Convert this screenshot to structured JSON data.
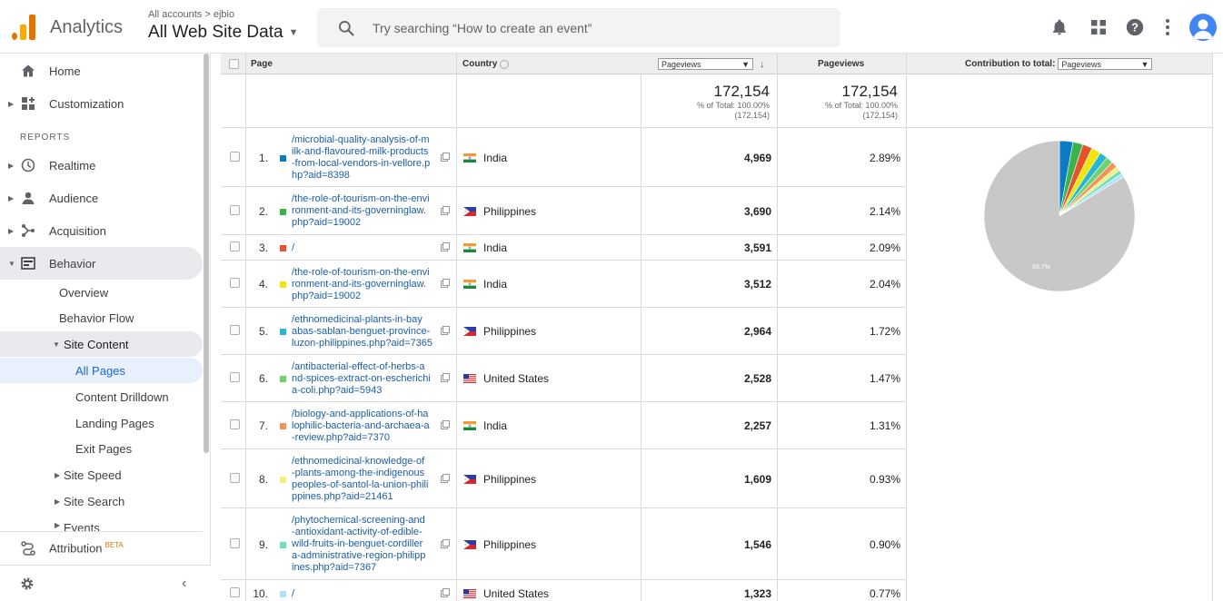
{
  "header": {
    "app_name": "Analytics",
    "breadcrumb": "All accounts > ejbio",
    "view_name": "All Web Site Data",
    "search_placeholder": "Try searching “How to create an event”"
  },
  "sidebar": {
    "items": [
      {
        "label": "Home",
        "icon": "home-icon"
      },
      {
        "label": "Customization",
        "icon": "customization-icon"
      },
      {
        "label": "Realtime",
        "icon": "clock-icon"
      },
      {
        "label": "Audience",
        "icon": "person-icon"
      },
      {
        "label": "Acquisition",
        "icon": "acquisition-icon"
      },
      {
        "label": "Behavior",
        "icon": "behavior-icon"
      }
    ],
    "section_label": "REPORTS",
    "behavior_sub": [
      "Overview",
      "Behavior Flow"
    ],
    "site_content_label": "Site Content",
    "site_content_sub": [
      "All Pages",
      "Content Drilldown",
      "Landing Pages",
      "Exit Pages"
    ],
    "more_sub": [
      "Site Speed",
      "Site Search",
      "Events"
    ],
    "attribution_label": "Attribution",
    "attribution_badge": "BETA"
  },
  "table": {
    "col_page": "Page",
    "col_country": "Country",
    "metric_select": "Pageviews",
    "col_pageviews": "Pageviews",
    "contribution_label": "Contribution to total:",
    "contribution_select": "Pageviews",
    "total_value_1": "172,154",
    "total_pct_1": "% of Total: 100.00%",
    "total_abs_1": "(172,154)",
    "total_value_2": "172,154",
    "total_pct_2": "% of Total: 100.00%",
    "total_abs_2": "(172,154)",
    "rows": [
      {
        "num": "1.",
        "page": "/microbial-quality-analysis-of-milk-and-flavoured-milk-products-from-local-vendors-in-vellore.php?aid=8398",
        "country": "India",
        "flag": "india",
        "pageviews": "4,969",
        "pct": "2.89%",
        "color": "#0b7bc4"
      },
      {
        "num": "2.",
        "page": "/the-role-of-tourism-on-the-environment-and-its-governinglaw.php?aid=19002",
        "country": "Philippines",
        "flag": "philippines",
        "pageviews": "3,690",
        "pct": "2.14%",
        "color": "#3cb34a"
      },
      {
        "num": "3.",
        "page": "/",
        "country": "India",
        "flag": "india",
        "pageviews": "3,591",
        "pct": "2.09%",
        "color": "#e5532b"
      },
      {
        "num": "4.",
        "page": "/the-role-of-tourism-on-the-environment-and-its-governinglaw.php?aid=19002",
        "country": "India",
        "flag": "india",
        "pageviews": "3,512",
        "pct": "2.04%",
        "color": "#f1e60b"
      },
      {
        "num": "5.",
        "page": "/ethnomedicinal-plants-in-bayabas-sablan-benguet-province-luzon-philippines.php?aid=7365",
        "country": "Philippines",
        "flag": "philippines",
        "pageviews": "2,964",
        "pct": "1.72%",
        "color": "#27b7d6"
      },
      {
        "num": "6.",
        "page": "/antibacterial-effect-of-herbs-and-spices-extract-on-escherichia-coli.php?aid=5943",
        "country": "United States",
        "flag": "us",
        "pageviews": "2,528",
        "pct": "1.47%",
        "color": "#6cd36e"
      },
      {
        "num": "7.",
        "page": "/biology-and-applications-of-halophilic-bacteria-and-archaea-a-review.php?aid=7370",
        "country": "India",
        "flag": "india",
        "pageviews": "2,257",
        "pct": "1.31%",
        "color": "#f5925a"
      },
      {
        "num": "8.",
        "page": "/ethnomedicinal-knowledge-of-plants-among-the-indigenouspeoples-of-santol-la-union-philippines.php?aid=21461",
        "country": "Philippines",
        "flag": "philippines",
        "pageviews": "1,609",
        "pct": "0.93%",
        "color": "#f3f07b"
      },
      {
        "num": "9.",
        "page": "/phytochemical-screening-and-antioxidant-activity-of-edible-wild-fruits-in-benguet-cordillera-administrative-region-philippines.php?aid=7367",
        "country": "Philippines",
        "flag": "philippines",
        "pageviews": "1,546",
        "pct": "0.90%",
        "color": "#6ee0bd"
      },
      {
        "num": "10.",
        "page": "/",
        "country": "United States",
        "flag": "us",
        "pageviews": "1,323",
        "pct": "0.77%",
        "color": "#b3e0f7"
      }
    ]
  },
  "chart_data": {
    "type": "pie",
    "categories": [
      "1",
      "2",
      "3",
      "4",
      "5",
      "6",
      "7",
      "8",
      "9",
      "10",
      "Other"
    ],
    "values": [
      2.89,
      2.14,
      2.09,
      2.04,
      1.72,
      1.47,
      1.31,
      0.93,
      0.9,
      0.77,
      83.7
    ],
    "colors": [
      "#0b7bc4",
      "#3cb34a",
      "#e5532b",
      "#f1e60b",
      "#27b7d6",
      "#6cd36e",
      "#f5925a",
      "#f3f07b",
      "#6ee0bd",
      "#b3e0f7",
      "#c8c8c8"
    ],
    "slice_label": "83.7%"
  }
}
